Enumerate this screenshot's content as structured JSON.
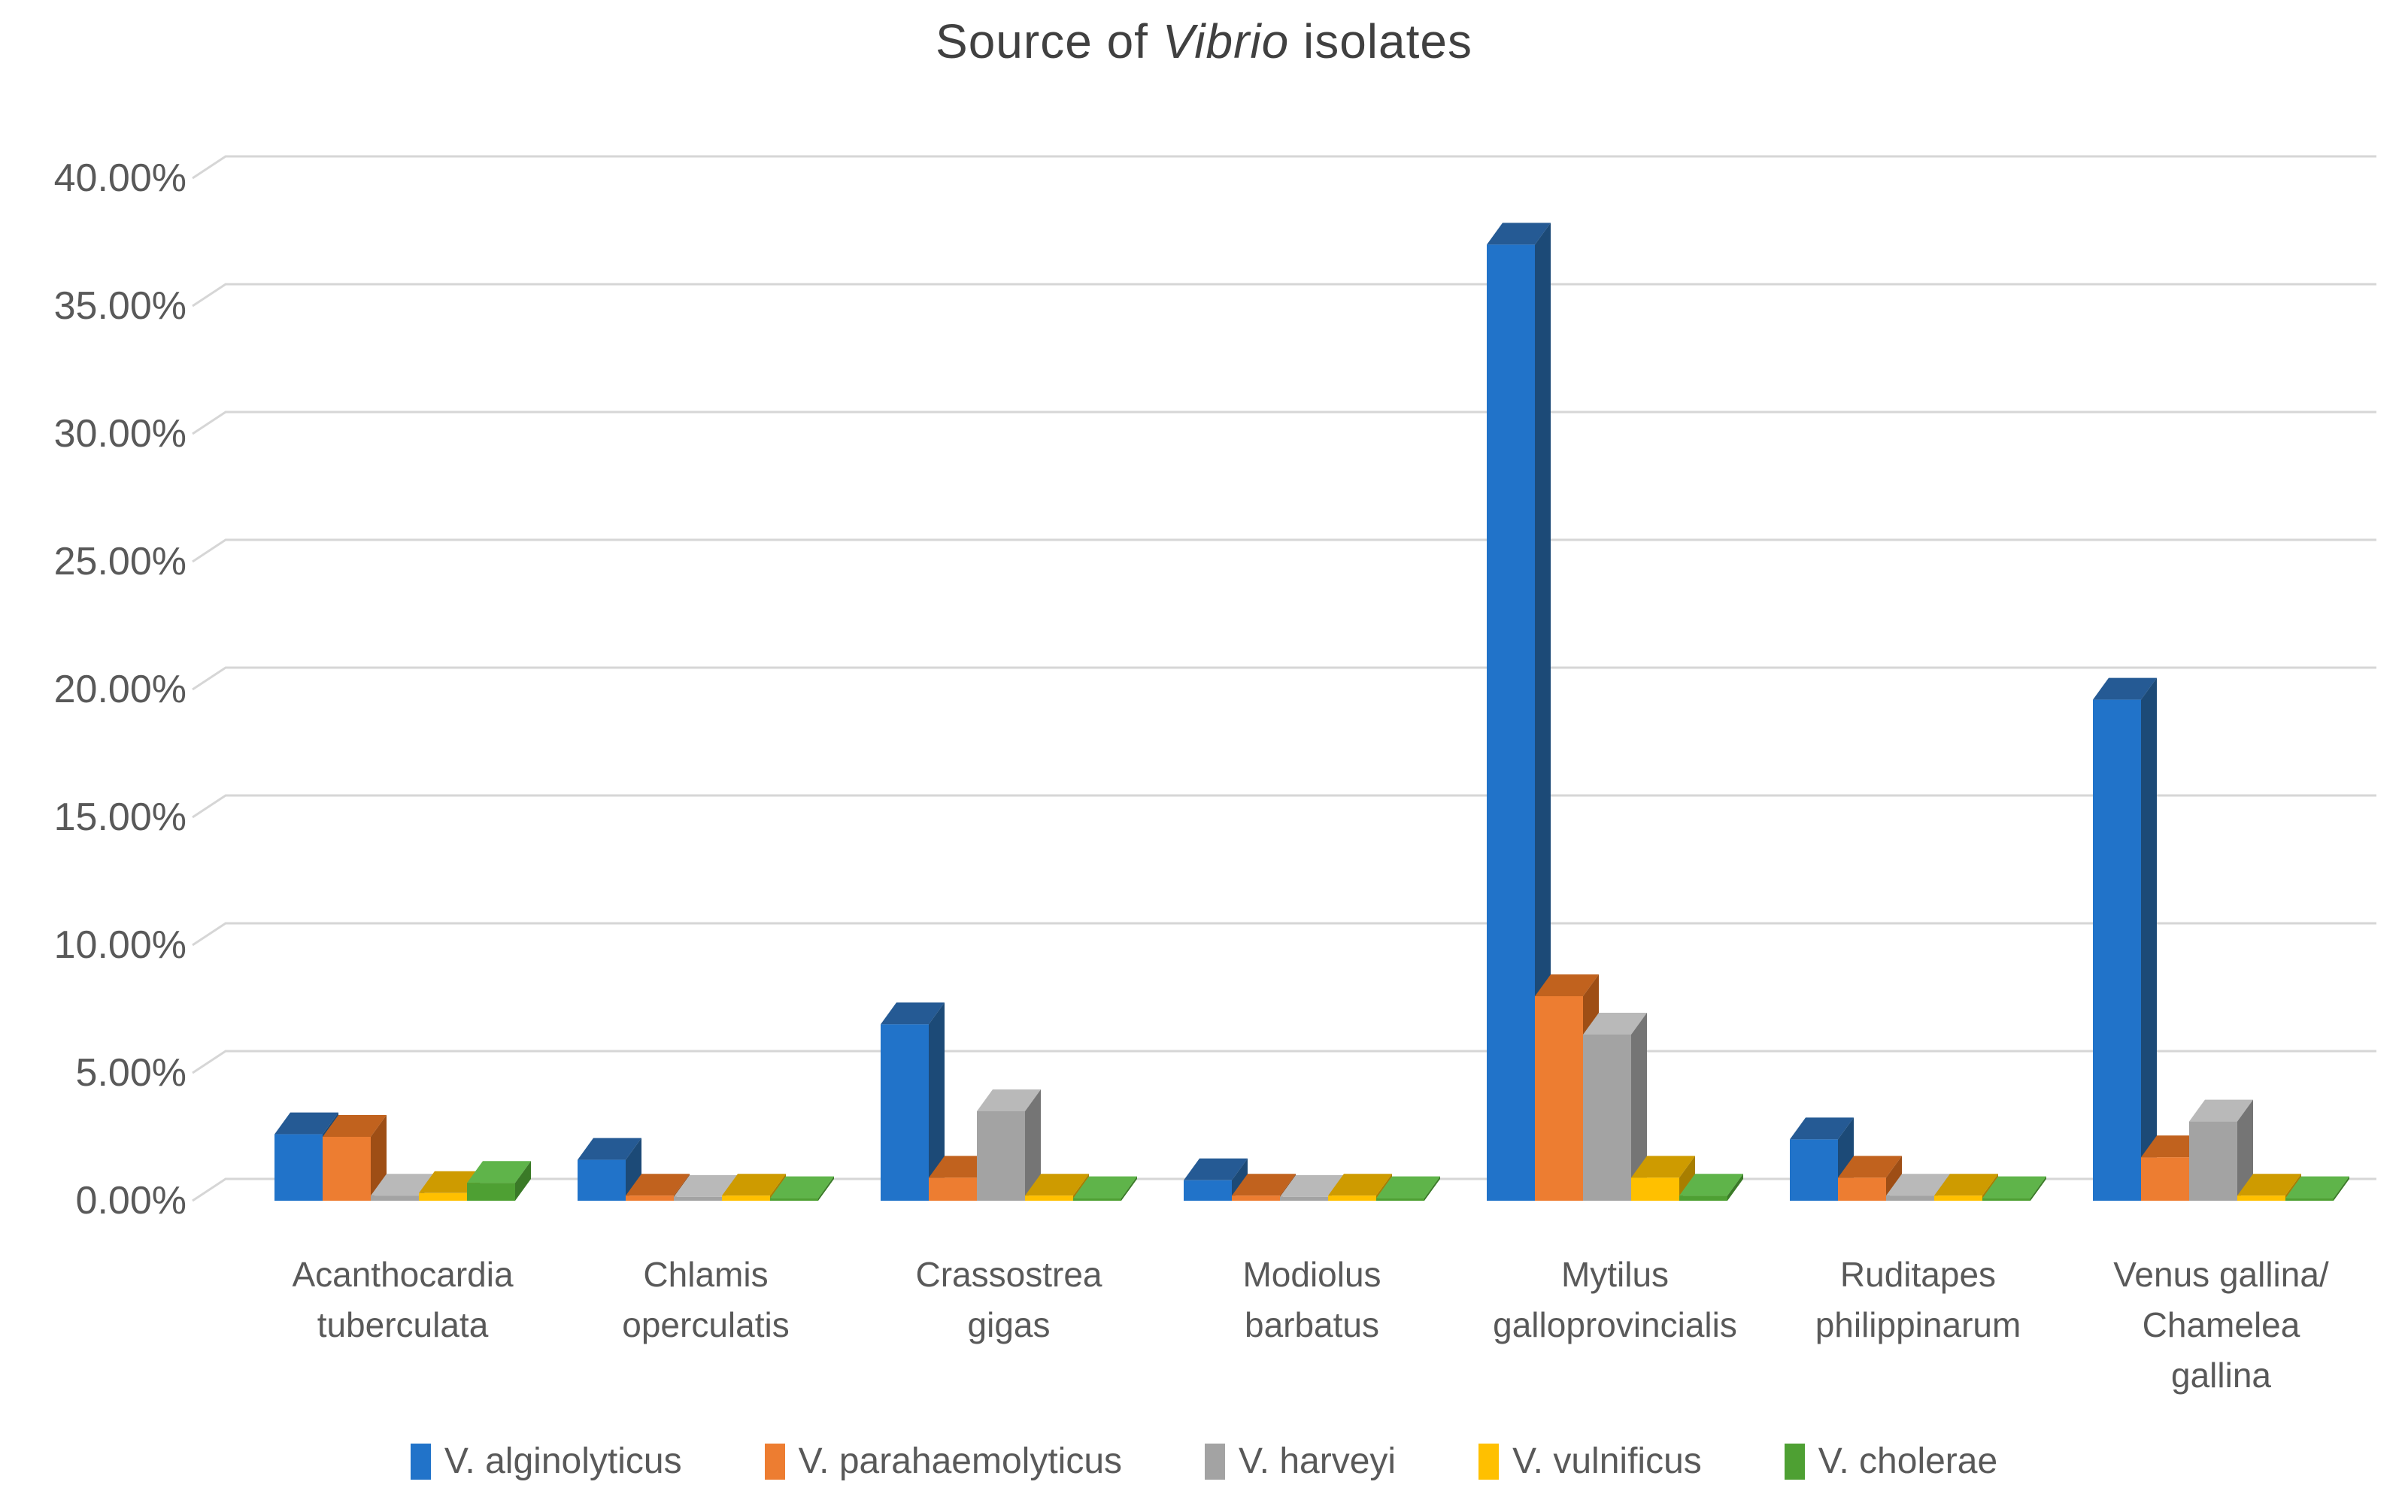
{
  "title": {
    "prefix": "Source of ",
    "vibrio": "Vibrio",
    "suffix": " isolates"
  },
  "chart_data": {
    "type": "bar",
    "subtype": "3d-clustered-column",
    "title": "Source of Vibrio isolates",
    "categories": [
      "Acanthocardia tuberculata",
      "Chlamis operculatis",
      "Crassostrea gigas",
      "Modiolus barbatus",
      "Mytilus galloprovincialis",
      "Ruditapes philippinarum",
      "Venus gallina/ Chamelea gallina"
    ],
    "category_lines": [
      [
        "Acanthocardia",
        "tuberculata"
      ],
      [
        "Chlamis",
        "operculatis"
      ],
      [
        "Crassostrea",
        "gigas"
      ],
      [
        "Modiolus",
        "barbatus"
      ],
      [
        "Mytilus",
        "galloprovincialis"
      ],
      [
        "Ruditapes",
        "philippinarum"
      ],
      [
        "Venus gallina/",
        "Chamelea",
        "gallina"
      ]
    ],
    "series": [
      {
        "name": "V. alginolyticus",
        "color": "#2173C9",
        "color_top": "#255A94",
        "color_side": "#1C4A77",
        "values": [
          2.6,
          1.6,
          6.9,
          0.8,
          37.4,
          2.4,
          19.6
        ]
      },
      {
        "name": "V. parahaemolyticus",
        "color": "#ED7D31",
        "color_top": "#C1621E",
        "color_side": "#9E4E15",
        "values": [
          2.5,
          0.2,
          0.9,
          0.2,
          8.0,
          0.9,
          1.7
        ]
      },
      {
        "name": "V. harveyi",
        "color": "#A3A3A3",
        "color_top": "#B9B9B9",
        "color_side": "#757575",
        "values": [
          0.2,
          0.15,
          3.5,
          0.15,
          6.5,
          0.2,
          3.1
        ]
      },
      {
        "name": "V. vulnificus",
        "color": "#FFC000",
        "color_top": "#CE9B00",
        "color_side": "#A87E00",
        "values": [
          0.3,
          0.2,
          0.2,
          0.2,
          0.9,
          0.2,
          0.2
        ]
      },
      {
        "name": "V. cholerae",
        "color": "#4EA033",
        "color_top": "#5FB44A",
        "color_side": "#3A7A27",
        "values": [
          0.7,
          0.1,
          0.1,
          0.1,
          0.2,
          0.1,
          0.1
        ]
      }
    ],
    "y_axis": {
      "min": 0,
      "max": 40,
      "step": 5,
      "unit": "%",
      "tick_labels": [
        "0.00%",
        "5.00%",
        "10.00%",
        "15.00%",
        "20.00%",
        "25.00%",
        "30.00%",
        "35.00%",
        "40.00%"
      ]
    },
    "grid": true,
    "legend_position": "bottom",
    "gridline_color": "#D6D6D6",
    "text_color": "#595959",
    "title_color": "#404040",
    "background": "#FFFFFF"
  }
}
